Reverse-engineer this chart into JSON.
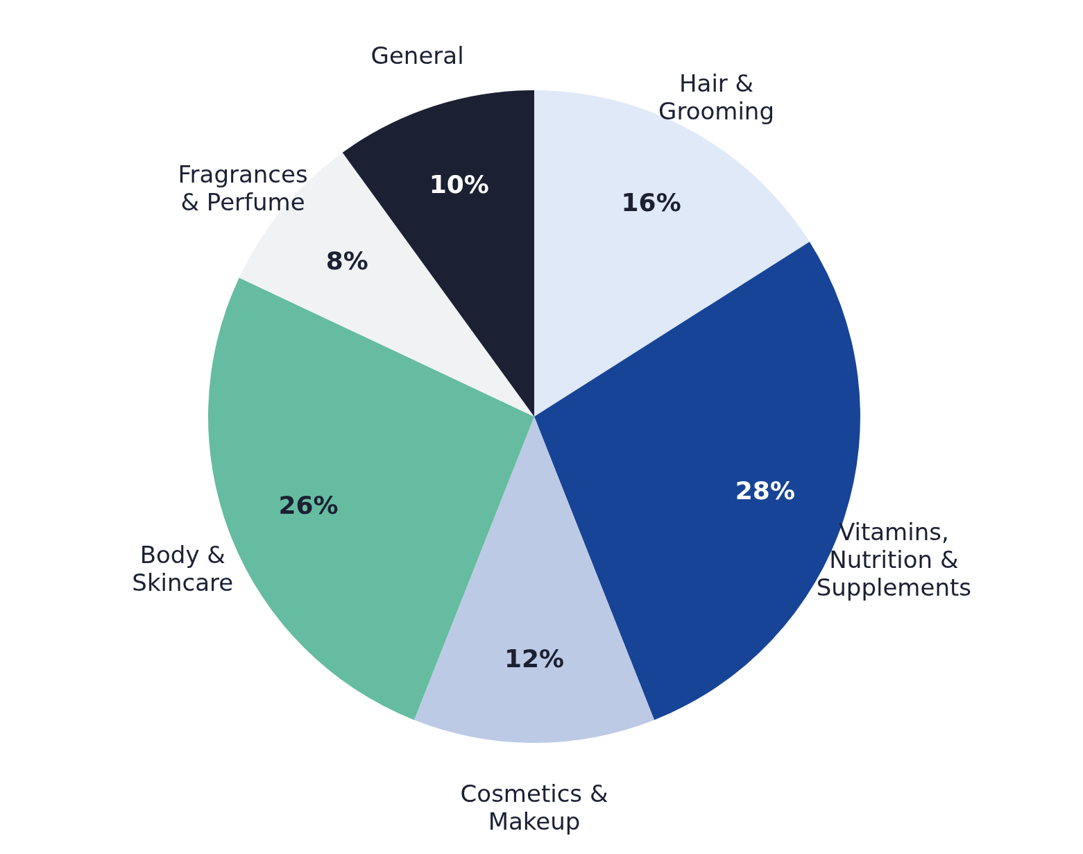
{
  "chart_data": {
    "type": "pie",
    "categories": [
      "Hair & Grooming",
      "Vitamins, Nutrition & Supplements",
      "Cosmetics & Makeup",
      "Body & Skincare",
      "Fragrances & Perfume",
      "General"
    ],
    "values": [
      16,
      28,
      12,
      26,
      8,
      10
    ],
    "colors": [
      "#e0e9f7",
      "#174496",
      "#bdcae5",
      "#66bca0",
      "#f0f2f4",
      "#1c2033"
    ],
    "value_labels": [
      "16%",
      "28%",
      "12%",
      "26%",
      "8%",
      "10%"
    ]
  }
}
